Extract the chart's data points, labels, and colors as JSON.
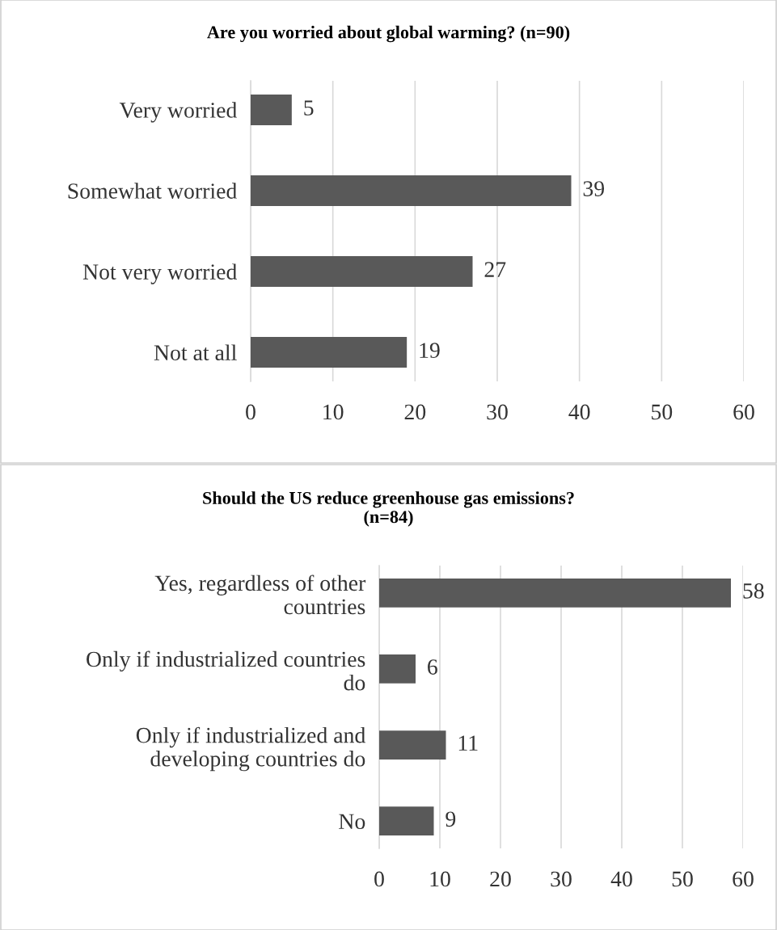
{
  "chart_data": [
    {
      "type": "bar",
      "orientation": "horizontal",
      "title": "Are you worried about global warming? (n=90)",
      "categories": [
        "Very worried",
        "Somewhat worried",
        "Not very worried",
        "Not at all"
      ],
      "values": [
        5,
        39,
        27,
        19
      ],
      "color": "#595959",
      "data_labels": true,
      "xlim": [
        0,
        60
      ],
      "xticks": [
        0,
        10,
        20,
        30,
        40,
        50,
        60
      ],
      "grid": "x",
      "legend": false
    },
    {
      "type": "bar",
      "orientation": "horizontal",
      "title": "Should the US reduce greenhouse gas emissions?\n(n=84)",
      "categories": [
        "Yes, regardless of other\ncountries",
        "Only if industrialized countries\ndo",
        "Only if industrialized and\ndeveloping countries do",
        "No"
      ],
      "values": [
        58,
        6,
        11,
        9
      ],
      "color": "#595959",
      "data_labels": true,
      "xlim": [
        0,
        60
      ],
      "xticks": [
        0,
        10,
        20,
        30,
        40,
        50,
        60
      ],
      "grid": "x",
      "legend": false
    }
  ]
}
